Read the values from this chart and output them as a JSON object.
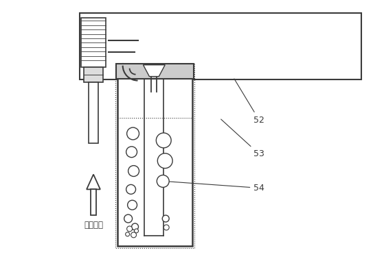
{
  "line_color": "#3a3a3a",
  "fig_width": 5.43,
  "fig_height": 3.78,
  "dpi": 100,
  "gas_supply_text": "ガス供給"
}
